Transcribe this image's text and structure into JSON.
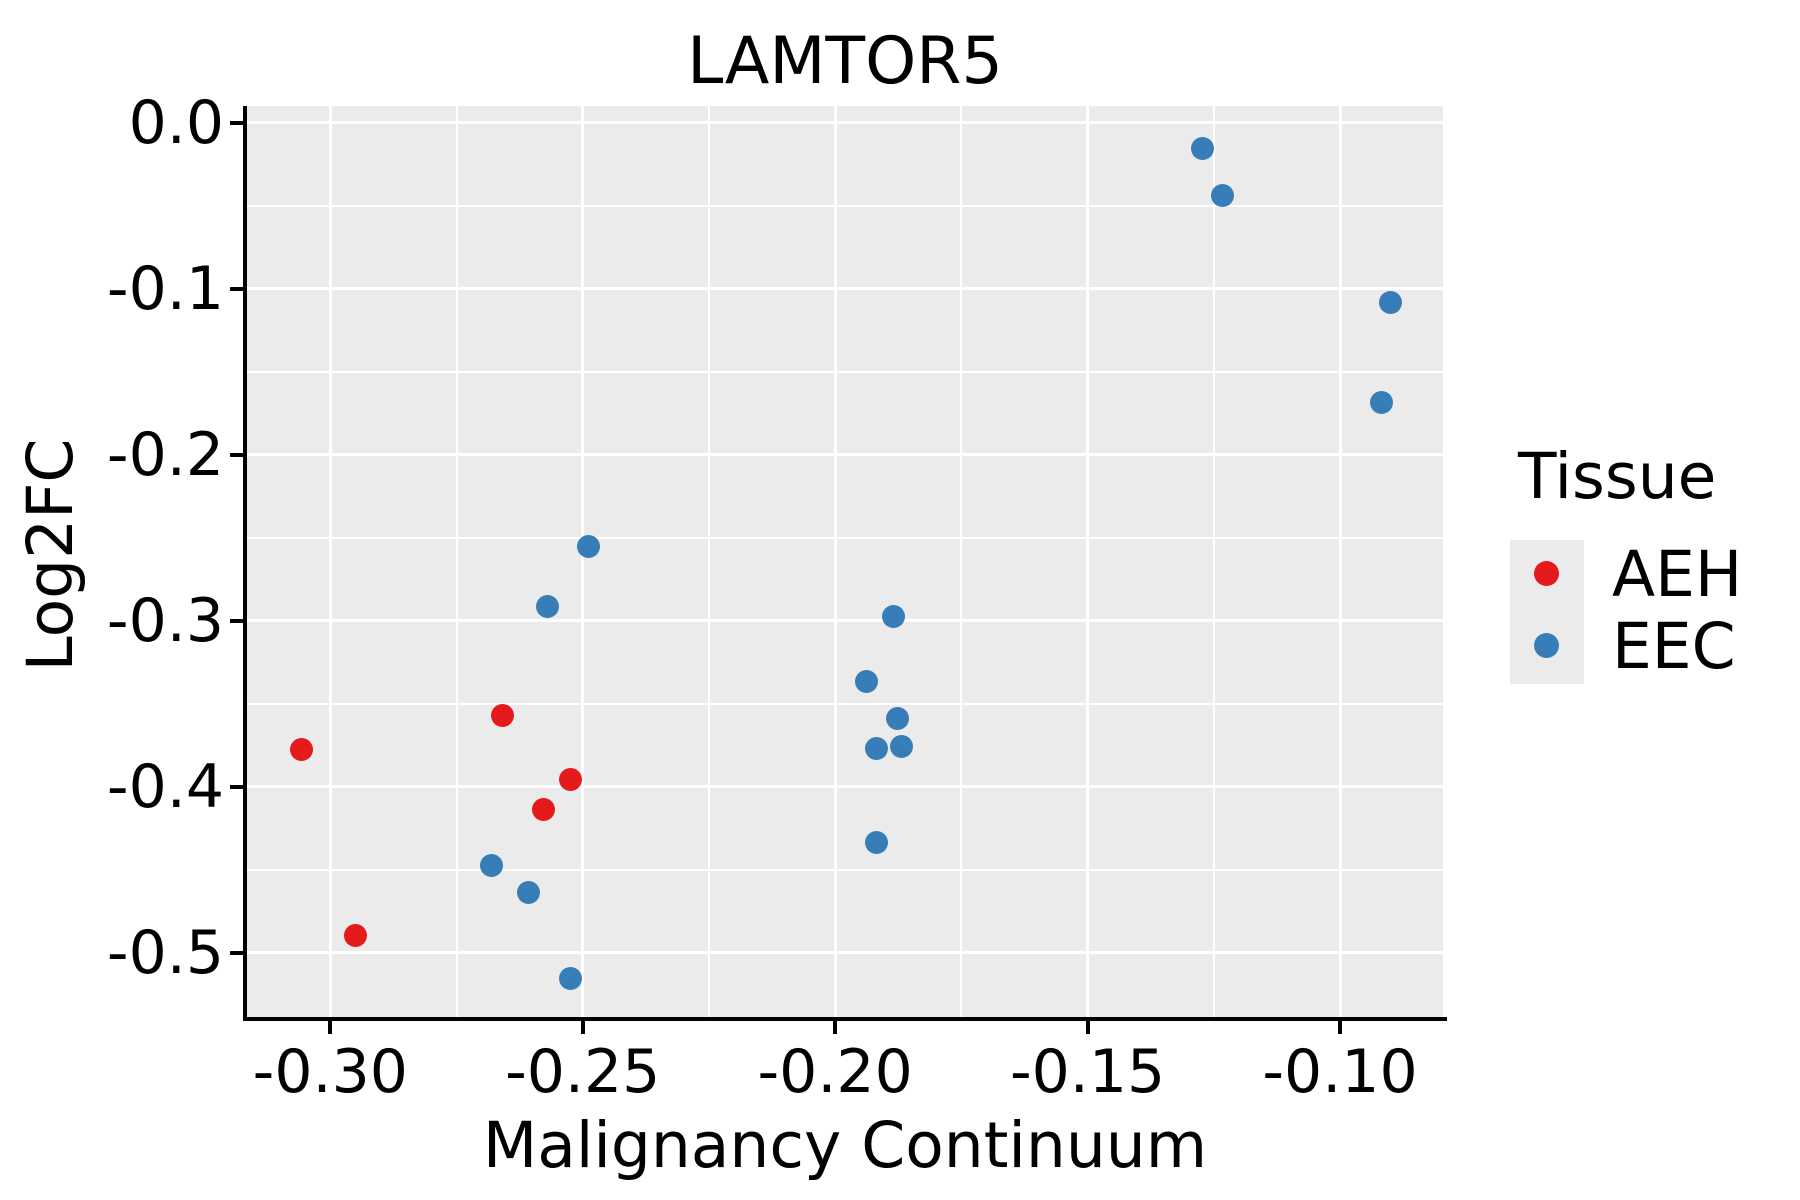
{
  "title": "LAMTOR5",
  "axes": {
    "x": {
      "label": "Malignancy Continuum",
      "ticks": [
        "-0.30",
        "-0.25",
        "-0.20",
        "-0.15",
        "-0.10"
      ],
      "tick_values": [
        -0.3,
        -0.25,
        -0.2,
        -0.15,
        -0.1
      ],
      "minor_values": [
        -0.275,
        -0.225,
        -0.175,
        -0.125
      ]
    },
    "y": {
      "label": "Log2FC",
      "ticks": [
        "0.0",
        "-0.1",
        "-0.2",
        "-0.3",
        "-0.4",
        "-0.5"
      ],
      "tick_values": [
        0.0,
        -0.1,
        -0.2,
        -0.3,
        -0.4,
        -0.5
      ],
      "minor_values": [
        -0.05,
        -0.15,
        -0.25,
        -0.35,
        -0.45
      ]
    }
  },
  "legend": {
    "title": "Tissue",
    "entries": [
      {
        "label": "AEH",
        "color": "#E41A1C"
      },
      {
        "label": "EEC",
        "color": "#377EB8"
      }
    ]
  },
  "colors": {
    "panel_background": "#EBEBEB",
    "gridline": "#FFFFFF",
    "axis": "#000000",
    "aeh": "#E41A1C",
    "eec": "#377EB8"
  },
  "chart_data": {
    "type": "scatter",
    "title": "LAMTOR5",
    "xlabel": "Malignancy Continuum",
    "ylabel": "Log2FC",
    "xlim": [
      -0.3165,
      -0.0796
    ],
    "ylim": [
      -0.5386,
      0.0102
    ],
    "grid": true,
    "legend_position": "right",
    "series": [
      {
        "name": "AEH",
        "color": "#E41A1C",
        "points": [
          [
            -0.3058,
            -0.3773
          ],
          [
            -0.295,
            -0.4896
          ],
          [
            -0.2659,
            -0.3572
          ],
          [
            -0.2577,
            -0.4138
          ],
          [
            -0.2524,
            -0.3958
          ]
        ]
      },
      {
        "name": "EEC",
        "color": "#377EB8",
        "points": [
          [
            -0.2681,
            -0.4476
          ],
          [
            -0.2607,
            -0.4633
          ],
          [
            -0.257,
            -0.2914
          ],
          [
            -0.2525,
            -0.5157
          ],
          [
            -0.2488,
            -0.2552
          ],
          [
            -0.1937,
            -0.3366
          ],
          [
            -0.1918,
            -0.4336
          ],
          [
            -0.1919,
            -0.3767
          ],
          [
            -0.1884,
            -0.2974
          ],
          [
            -0.1876,
            -0.3586
          ],
          [
            -0.1869,
            -0.3757
          ],
          [
            -0.1272,
            -0.0157
          ],
          [
            -0.1232,
            -0.044
          ],
          [
            -0.0917,
            -0.1685
          ],
          [
            -0.09,
            -0.108
          ]
        ]
      }
    ]
  }
}
